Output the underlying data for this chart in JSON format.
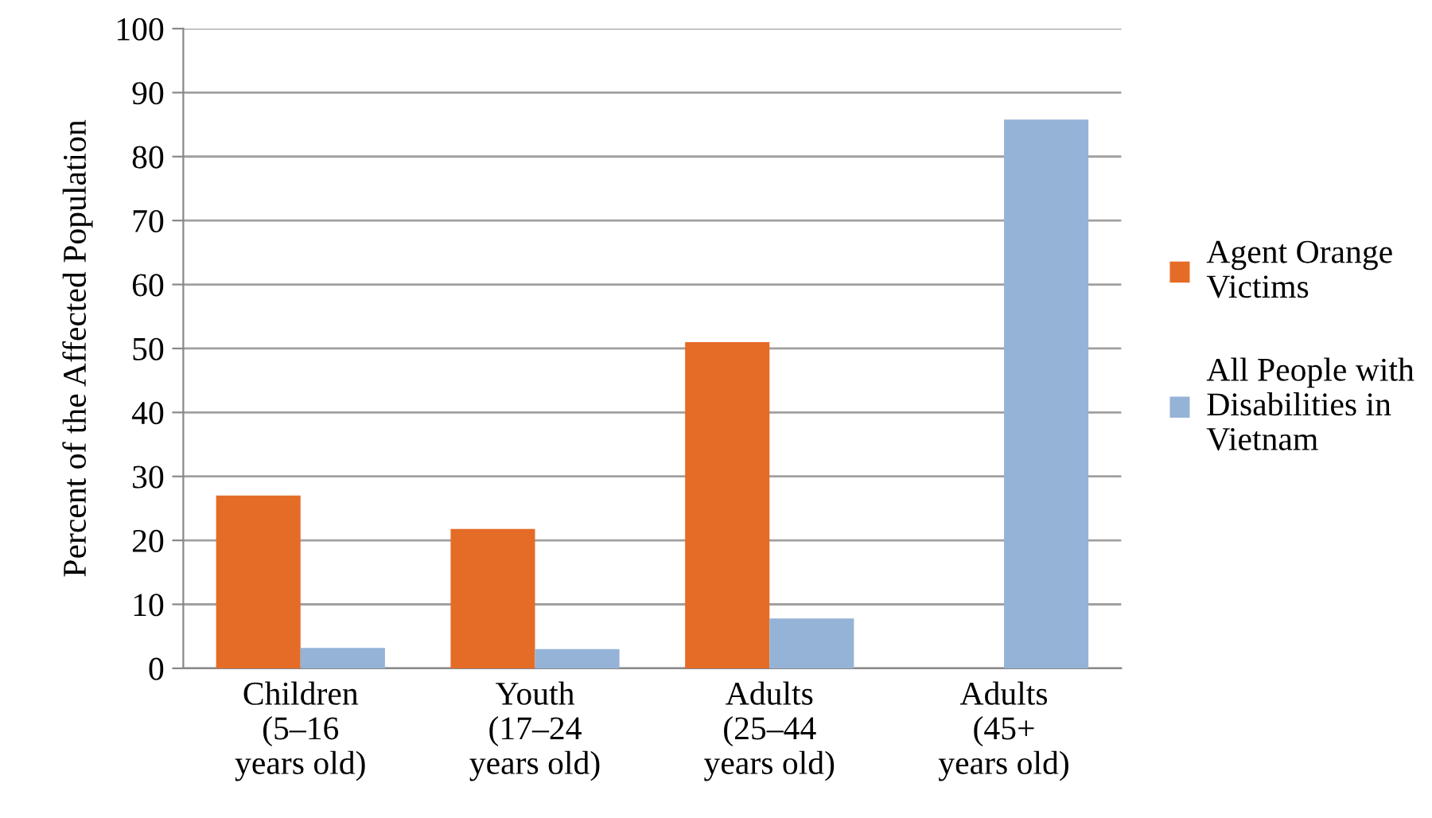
{
  "chart_data": {
    "type": "bar",
    "ylabel": "Percent of the Affected Population",
    "categories": [
      "Children\n(5–16\nyears old)",
      "Youth\n(17–24\nyears old)",
      "Adults\n(25–44\nyears old)",
      "Adults\n(45+\nyears old)"
    ],
    "series": [
      {
        "name": "Agent Orange\nVictims",
        "color": "#e46c27",
        "values": [
          27,
          21.8,
          51,
          null
        ]
      },
      {
        "name": "All People with\nDisabilities in\nVietnam",
        "color": "#95b3d7",
        "values": [
          3.2,
          3.0,
          7.8,
          85.8
        ]
      }
    ],
    "ylim": [
      0,
      100
    ],
    "yticks": [
      0,
      10,
      20,
      30,
      40,
      50,
      60,
      70,
      80,
      90,
      100
    ],
    "grid": "y",
    "legend": "right"
  }
}
